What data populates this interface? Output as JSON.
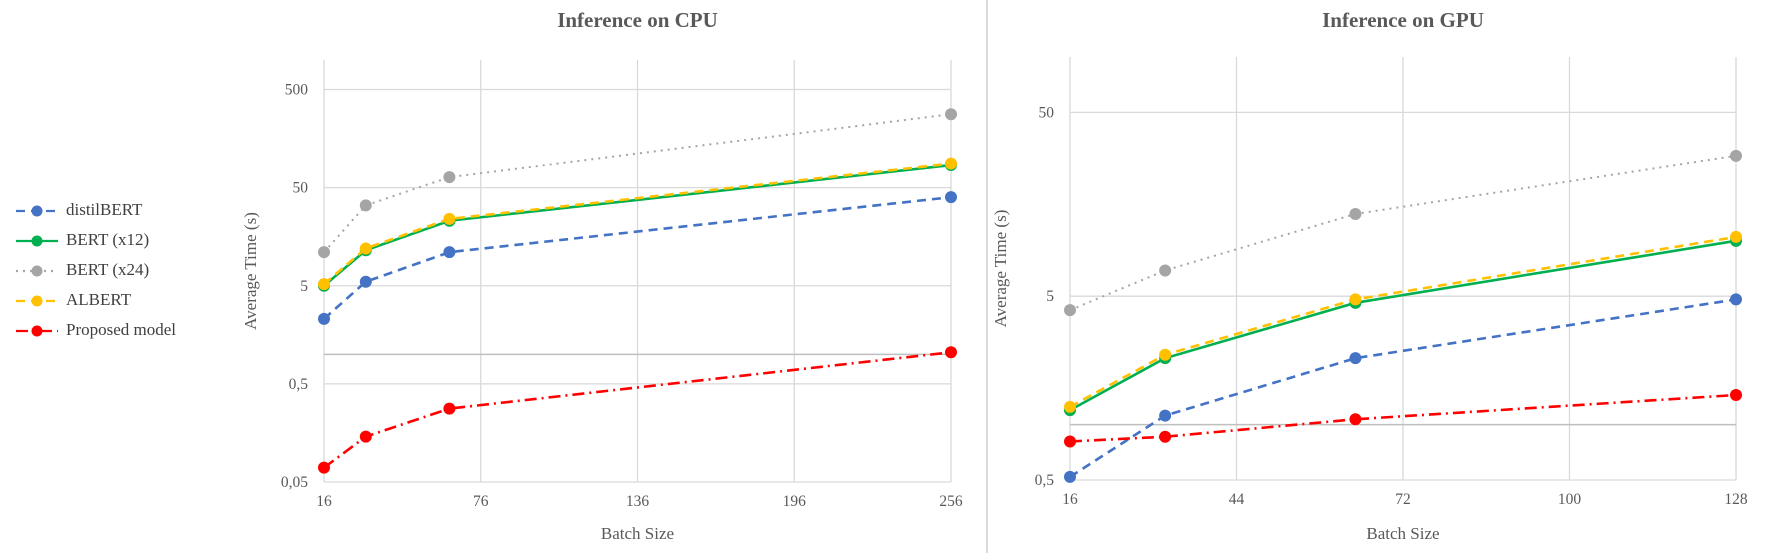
{
  "legend": {
    "items": [
      {
        "label": "distilBERT",
        "key": "distil"
      },
      {
        "label": "BERT (x12)",
        "key": "bert12"
      },
      {
        "label": "BERT (x24)",
        "key": "bert24"
      },
      {
        "label": "ALBERT",
        "key": "albert"
      },
      {
        "label": "Proposed model",
        "key": "proposed"
      }
    ]
  },
  "colors": {
    "distil": "#4472c4",
    "bert12": "#00b050",
    "bert24": "#a5a5a5",
    "albert": "#ffc000",
    "proposed": "#ff0000",
    "grid": "#d9d9d9",
    "text": "#595959"
  },
  "chart_data": [
    {
      "type": "line",
      "title": "Inference on CPU",
      "xlabel": "Batch Size",
      "ylabel": "Average Time (s)",
      "x_scale": "linear",
      "y_scale": "log",
      "xlim": [
        16,
        256
      ],
      "ylim": [
        0.05,
        1000
      ],
      "x_ticks": [
        "16",
        "76",
        "136",
        "196",
        "256"
      ],
      "y_ticks": [
        "0,05",
        "0,5",
        "5",
        "50",
        "500"
      ],
      "x_tick_values": [
        16,
        76,
        136,
        196,
        256
      ],
      "y_tick_values": [
        0.05,
        0.5,
        5,
        50,
        500
      ],
      "grid": true,
      "x": [
        16,
        32,
        64,
        256
      ],
      "series": [
        {
          "name": "distilBERT",
          "key": "distil",
          "style": "dashed",
          "values": [
            2.3,
            5.5,
            11,
            40
          ]
        },
        {
          "name": "BERT (x12)",
          "key": "bert12",
          "style": "solid",
          "values": [
            5.0,
            11.5,
            23,
            85
          ]
        },
        {
          "name": "BERT (x24)",
          "key": "bert24",
          "style": "dotted",
          "values": [
            11,
            33,
            64,
            280
          ]
        },
        {
          "name": "ALBERT",
          "key": "albert",
          "style": "dashed",
          "values": [
            5.2,
            12,
            24,
            88
          ]
        },
        {
          "name": "Proposed model",
          "key": "proposed",
          "style": "dashdot",
          "values": [
            0.07,
            0.145,
            0.28,
            1.05
          ]
        }
      ]
    },
    {
      "type": "line",
      "title": "Inference on GPU",
      "xlabel": "Batch Size",
      "ylabel": "Average Time (s)",
      "x_scale": "linear",
      "y_scale": "log",
      "xlim": [
        16,
        128
      ],
      "ylim": [
        0.5,
        100
      ],
      "x_ticks": [
        "16",
        "44",
        "72",
        "100",
        "128"
      ],
      "y_ticks": [
        "0,5",
        "5",
        "50"
      ],
      "x_tick_values": [
        16,
        44,
        72,
        100,
        128
      ],
      "y_tick_values": [
        0.5,
        5,
        50
      ],
      "grid": true,
      "x": [
        16,
        32,
        64,
        128
      ],
      "series": [
        {
          "name": "distilBERT",
          "key": "distil",
          "style": "dashed",
          "values": [
            0.52,
            1.12,
            2.3,
            4.8
          ]
        },
        {
          "name": "BERT (x12)",
          "key": "bert12",
          "style": "solid",
          "values": [
            1.2,
            2.3,
            4.6,
            10
          ]
        },
        {
          "name": "BERT (x24)",
          "key": "bert24",
          "style": "dotted",
          "values": [
            4.2,
            6.9,
            14,
            29
          ]
        },
        {
          "name": "ALBERT",
          "key": "albert",
          "style": "dashed",
          "values": [
            1.25,
            2.4,
            4.8,
            10.5
          ]
        },
        {
          "name": "Proposed model",
          "key": "proposed",
          "style": "dashdot",
          "values": [
            0.81,
            0.86,
            1.07,
            1.45
          ]
        }
      ]
    }
  ]
}
